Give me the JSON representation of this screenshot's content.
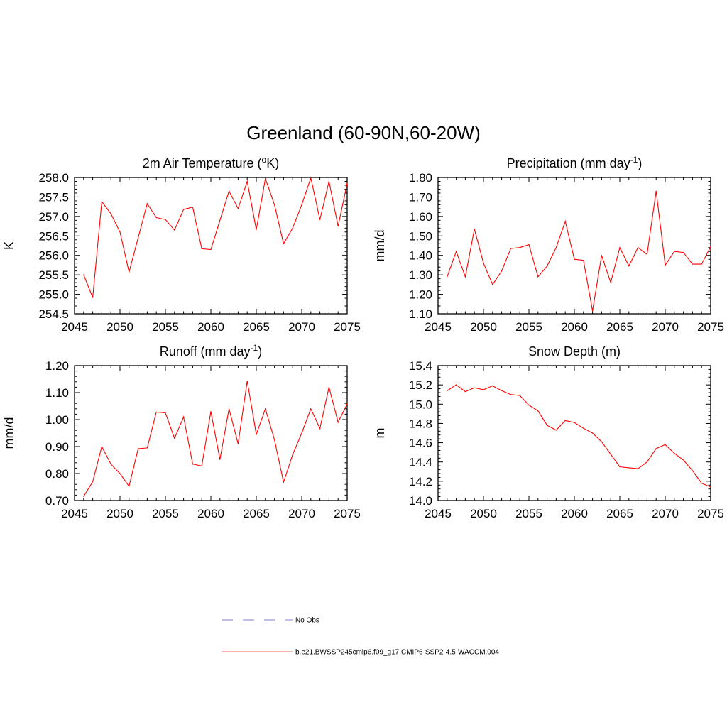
{
  "title": "Greenland (60-90N,60-20W)",
  "legend": [
    {
      "label": "No Obs",
      "color": "#9999dd",
      "dash": true
    },
    {
      "label": "b.e21.BWSSP245cmip6.f09_g17.CMIP6-SSP2-4.5-WACCM.004",
      "color": "#ff8080",
      "dash": false
    }
  ],
  "chart_data": [
    {
      "type": "line",
      "title": "2m Air Temperature (°K)",
      "title_main": "2m Air Temperature (",
      "title_sup": "o",
      "title_tail": "K)",
      "ylabel": "K",
      "xlim": [
        2045,
        2075
      ],
      "ylim": [
        254.5,
        258.0
      ],
      "xticks": [
        2045,
        2050,
        2055,
        2060,
        2065,
        2070,
        2075
      ],
      "yticks": [
        "254.5",
        "255.0",
        "255.5",
        "256.0",
        "256.5",
        "257.0",
        "257.5",
        "258.0"
      ],
      "color": "#ff0000",
      "x": [
        2046,
        2047,
        2048,
        2049,
        2050,
        2051,
        2052,
        2053,
        2054,
        2055,
        2056,
        2057,
        2058,
        2059,
        2060,
        2061,
        2062,
        2063,
        2064,
        2065,
        2066,
        2067,
        2068,
        2069,
        2070,
        2071,
        2072,
        2073,
        2074,
        2075
      ],
      "values": [
        255.5,
        254.92,
        257.38,
        257.07,
        256.6,
        255.57,
        256.45,
        257.33,
        256.97,
        256.92,
        256.65,
        257.18,
        257.24,
        256.17,
        256.15,
        256.9,
        257.65,
        257.2,
        257.9,
        256.66,
        257.97,
        257.3,
        256.3,
        256.7,
        257.3,
        257.99,
        256.92,
        257.9,
        256.75,
        257.85
      ]
    },
    {
      "type": "line",
      "title": "Precipitation (mm day-1)",
      "title_main": "Precipitation (mm day",
      "title_sup": "-1",
      "title_tail": ")",
      "ylabel": "mm/d",
      "xlim": [
        2045,
        2075
      ],
      "ylim": [
        1.1,
        1.8
      ],
      "xticks": [
        2045,
        2050,
        2055,
        2060,
        2065,
        2070,
        2075
      ],
      "yticks": [
        "1.10",
        "1.20",
        "1.30",
        "1.40",
        "1.50",
        "1.60",
        "1.70",
        "1.80"
      ],
      "color": "#ff0000",
      "x": [
        2046,
        2047,
        2048,
        2049,
        2050,
        2051,
        2052,
        2053,
        2054,
        2055,
        2056,
        2057,
        2058,
        2059,
        2060,
        2061,
        2062,
        2063,
        2064,
        2065,
        2066,
        2067,
        2068,
        2069,
        2070,
        2071,
        2072,
        2073,
        2074,
        2075
      ],
      "values": [
        1.29,
        1.42,
        1.29,
        1.535,
        1.36,
        1.25,
        1.32,
        1.435,
        1.44,
        1.455,
        1.29,
        1.345,
        1.44,
        1.575,
        1.38,
        1.375,
        1.115,
        1.4,
        1.26,
        1.44,
        1.345,
        1.44,
        1.405,
        1.73,
        1.35,
        1.42,
        1.415,
        1.355,
        1.355,
        1.445
      ]
    },
    {
      "type": "line",
      "title": "Runoff (mm day-1)",
      "title_main": "Runoff (mm day",
      "title_sup": "-1",
      "title_tail": ")",
      "ylabel": "mm/d",
      "xlim": [
        2045,
        2075
      ],
      "ylim": [
        0.7,
        1.2
      ],
      "xticks": [
        2045,
        2050,
        2055,
        2060,
        2065,
        2070,
        2075
      ],
      "yticks": [
        "0.70",
        "0.80",
        "0.90",
        "1.00",
        "1.10",
        "1.20"
      ],
      "color": "#ff0000",
      "x": [
        2046,
        2047,
        2048,
        2049,
        2050,
        2051,
        2052,
        2053,
        2054,
        2055,
        2056,
        2057,
        2058,
        2059,
        2060,
        2061,
        2062,
        2063,
        2064,
        2065,
        2066,
        2067,
        2068,
        2069,
        2070,
        2071,
        2072,
        2073,
        2074,
        2075
      ],
      "values": [
        0.715,
        0.77,
        0.9,
        0.835,
        0.8,
        0.753,
        0.892,
        0.895,
        1.028,
        1.025,
        0.93,
        1.01,
        0.835,
        0.828,
        1.03,
        0.852,
        1.04,
        0.91,
        1.143,
        0.945,
        1.04,
        0.925,
        0.768,
        0.87,
        0.95,
        1.04,
        0.967,
        1.12,
        0.99,
        1.058
      ]
    },
    {
      "type": "line",
      "title": "Snow Depth (m)",
      "title_main": "Snow Depth (m)",
      "title_sup": "",
      "title_tail": "",
      "ylabel": "m",
      "xlim": [
        2045,
        2075
      ],
      "ylim": [
        14.0,
        15.4
      ],
      "xticks": [
        2045,
        2050,
        2055,
        2060,
        2065,
        2070,
        2075
      ],
      "yticks": [
        "14.0",
        "14.2",
        "14.4",
        "14.6",
        "14.8",
        "15.0",
        "15.2",
        "15.4"
      ],
      "color": "#ff0000",
      "x": [
        2046,
        2047,
        2048,
        2049,
        2050,
        2051,
        2052,
        2053,
        2054,
        2055,
        2056,
        2057,
        2058,
        2059,
        2060,
        2061,
        2062,
        2063,
        2064,
        2065,
        2066,
        2067,
        2068,
        2069,
        2070,
        2071,
        2072,
        2073,
        2074,
        2075
      ],
      "values": [
        15.14,
        15.2,
        15.13,
        15.17,
        15.15,
        15.19,
        15.14,
        15.1,
        15.09,
        14.99,
        14.93,
        14.78,
        14.73,
        14.83,
        14.81,
        14.75,
        14.7,
        14.61,
        14.48,
        14.35,
        14.34,
        14.33,
        14.4,
        14.54,
        14.58,
        14.49,
        14.42,
        14.31,
        14.18,
        14.14
      ]
    }
  ]
}
